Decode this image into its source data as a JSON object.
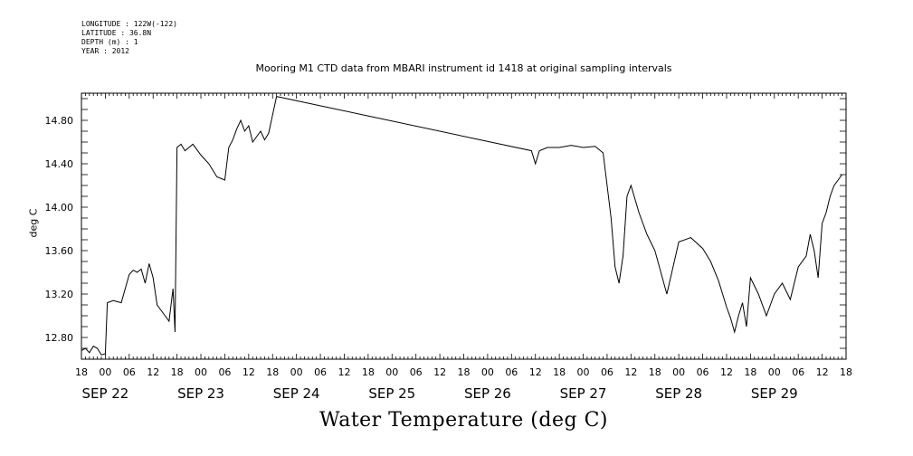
{
  "meta": {
    "longitude": "LONGITUDE : 122W(-122)",
    "latitude": "LATITUDE : 36.8N",
    "depth": "DEPTH (m) : 1",
    "year": "YEAR : 2012"
  },
  "chart_data": {
    "type": "line",
    "title": "Mooring M1 CTD data from MBARI instrument id 1418 at original sampling intervals",
    "xlabel": "Water Temperature (deg C)",
    "ylabel": "deg C",
    "xlim": [
      "2012-09-21T18:00",
      "2012-09-29T18:00"
    ],
    "ylim": [
      12.6,
      15.05
    ],
    "yticks": [
      "12.80",
      "13.20",
      "13.60",
      "14.00",
      "14.40",
      "14.80"
    ],
    "ytick_values": [
      12.8,
      13.2,
      13.6,
      14.0,
      14.4,
      14.8
    ],
    "hour_tick_labels": [
      "18",
      "00",
      "06",
      "12",
      "18",
      "00",
      "06",
      "12",
      "18",
      "00",
      "06",
      "12",
      "18",
      "00",
      "06",
      "12",
      "18",
      "00",
      "06",
      "12",
      "18",
      "00",
      "06",
      "12",
      "18",
      "00",
      "06",
      "12",
      "18",
      "00",
      "06",
      "12",
      "18"
    ],
    "day_labels": [
      {
        "label": "SEP 22",
        "at": "2012-09-22T00:00"
      },
      {
        "label": "SEP 23",
        "at": "2012-09-23T00:00"
      },
      {
        "label": "SEP 24",
        "at": "2012-09-24T00:00"
      },
      {
        "label": "SEP 25",
        "at": "2012-09-25T00:00"
      },
      {
        "label": "SEP 26",
        "at": "2012-09-26T00:00"
      },
      {
        "label": "SEP 27",
        "at": "2012-09-27T00:00"
      },
      {
        "label": "SEP 28",
        "at": "2012-09-28T00:00"
      },
      {
        "label": "SEP 29",
        "at": "2012-09-29T00:00"
      }
    ],
    "series": [
      {
        "color": "#000000",
        "x": [
          "2012-09-21T18:00",
          "2012-09-21T19:00",
          "2012-09-21T20:00",
          "2012-09-21T21:00",
          "2012-09-21T22:00",
          "2012-09-21T23:00",
          "2012-09-22T00:00",
          "2012-09-22T00:30",
          "2012-09-22T02:00",
          "2012-09-22T04:00",
          "2012-09-22T05:00",
          "2012-09-22T06:00",
          "2012-09-22T07:00",
          "2012-09-22T08:00",
          "2012-09-22T09:00",
          "2012-09-22T10:00",
          "2012-09-22T11:00",
          "2012-09-22T12:00",
          "2012-09-22T13:00",
          "2012-09-22T14:00",
          "2012-09-22T15:00",
          "2012-09-22T16:00",
          "2012-09-22T17:00",
          "2012-09-22T17:30",
          "2012-09-22T18:00",
          "2012-09-22T19:00",
          "2012-09-22T20:00",
          "2012-09-22T22:00",
          "2012-09-23T00:00",
          "2012-09-23T02:00",
          "2012-09-23T04:00",
          "2012-09-23T06:00",
          "2012-09-23T07:00",
          "2012-09-23T08:00",
          "2012-09-23T09:00",
          "2012-09-23T10:00",
          "2012-09-23T11:00",
          "2012-09-23T12:00",
          "2012-09-23T13:00",
          "2012-09-23T14:00",
          "2012-09-23T15:00",
          "2012-09-23T16:00",
          "2012-09-23T17:00",
          "2012-09-23T19:00",
          "2012-09-26T11:00",
          "2012-09-26T12:00",
          "2012-09-26T13:00",
          "2012-09-26T15:00",
          "2012-09-26T18:00",
          "2012-09-26T21:00",
          "2012-09-27T00:00",
          "2012-09-27T03:00",
          "2012-09-27T05:00",
          "2012-09-27T06:00",
          "2012-09-27T07:00",
          "2012-09-27T08:00",
          "2012-09-27T09:00",
          "2012-09-27T10:00",
          "2012-09-27T11:00",
          "2012-09-27T12:00",
          "2012-09-27T14:00",
          "2012-09-27T16:00",
          "2012-09-27T18:00",
          "2012-09-27T21:00",
          "2012-09-28T00:00",
          "2012-09-28T03:00",
          "2012-09-28T06:00",
          "2012-09-28T08:00",
          "2012-09-28T10:00",
          "2012-09-28T11:00",
          "2012-09-28T12:00",
          "2012-09-28T13:00",
          "2012-09-28T14:00",
          "2012-09-28T15:00",
          "2012-09-28T16:00",
          "2012-09-28T17:00",
          "2012-09-28T18:00",
          "2012-09-28T20:00",
          "2012-09-28T22:00",
          "2012-09-29T00:00",
          "2012-09-29T02:00",
          "2012-09-29T04:00",
          "2012-09-29T06:00",
          "2012-09-29T08:00",
          "2012-09-29T09:00",
          "2012-09-29T10:00",
          "2012-09-29T11:00",
          "2012-09-29T12:00",
          "2012-09-29T13:00",
          "2012-09-29T14:00",
          "2012-09-29T15:00",
          "2012-09-29T16:00",
          "2012-09-29T17:00"
        ],
        "y": [
          12.68,
          12.7,
          12.66,
          12.72,
          12.7,
          12.64,
          12.65,
          13.12,
          13.14,
          13.12,
          13.25,
          13.38,
          13.42,
          13.4,
          13.43,
          13.3,
          13.48,
          13.35,
          13.1,
          13.05,
          13.0,
          12.95,
          13.25,
          12.85,
          14.55,
          14.58,
          14.52,
          14.58,
          14.48,
          14.4,
          14.28,
          14.25,
          14.55,
          14.62,
          14.72,
          14.8,
          14.7,
          14.75,
          14.6,
          14.65,
          14.7,
          14.62,
          14.68,
          15.02,
          14.52,
          14.4,
          14.52,
          14.55,
          14.55,
          14.57,
          14.55,
          14.56,
          14.5,
          14.2,
          13.9,
          13.45,
          13.3,
          13.55,
          14.1,
          14.2,
          13.95,
          13.75,
          13.6,
          13.2,
          13.68,
          13.72,
          13.62,
          13.5,
          13.32,
          13.2,
          13.08,
          12.98,
          12.85,
          13.0,
          13.12,
          12.9,
          13.35,
          13.2,
          13.0,
          13.2,
          13.3,
          13.15,
          13.45,
          13.55,
          13.75,
          13.6,
          13.35,
          13.85,
          13.95,
          14.1,
          14.2,
          14.25,
          14.3
        ]
      }
    ]
  }
}
